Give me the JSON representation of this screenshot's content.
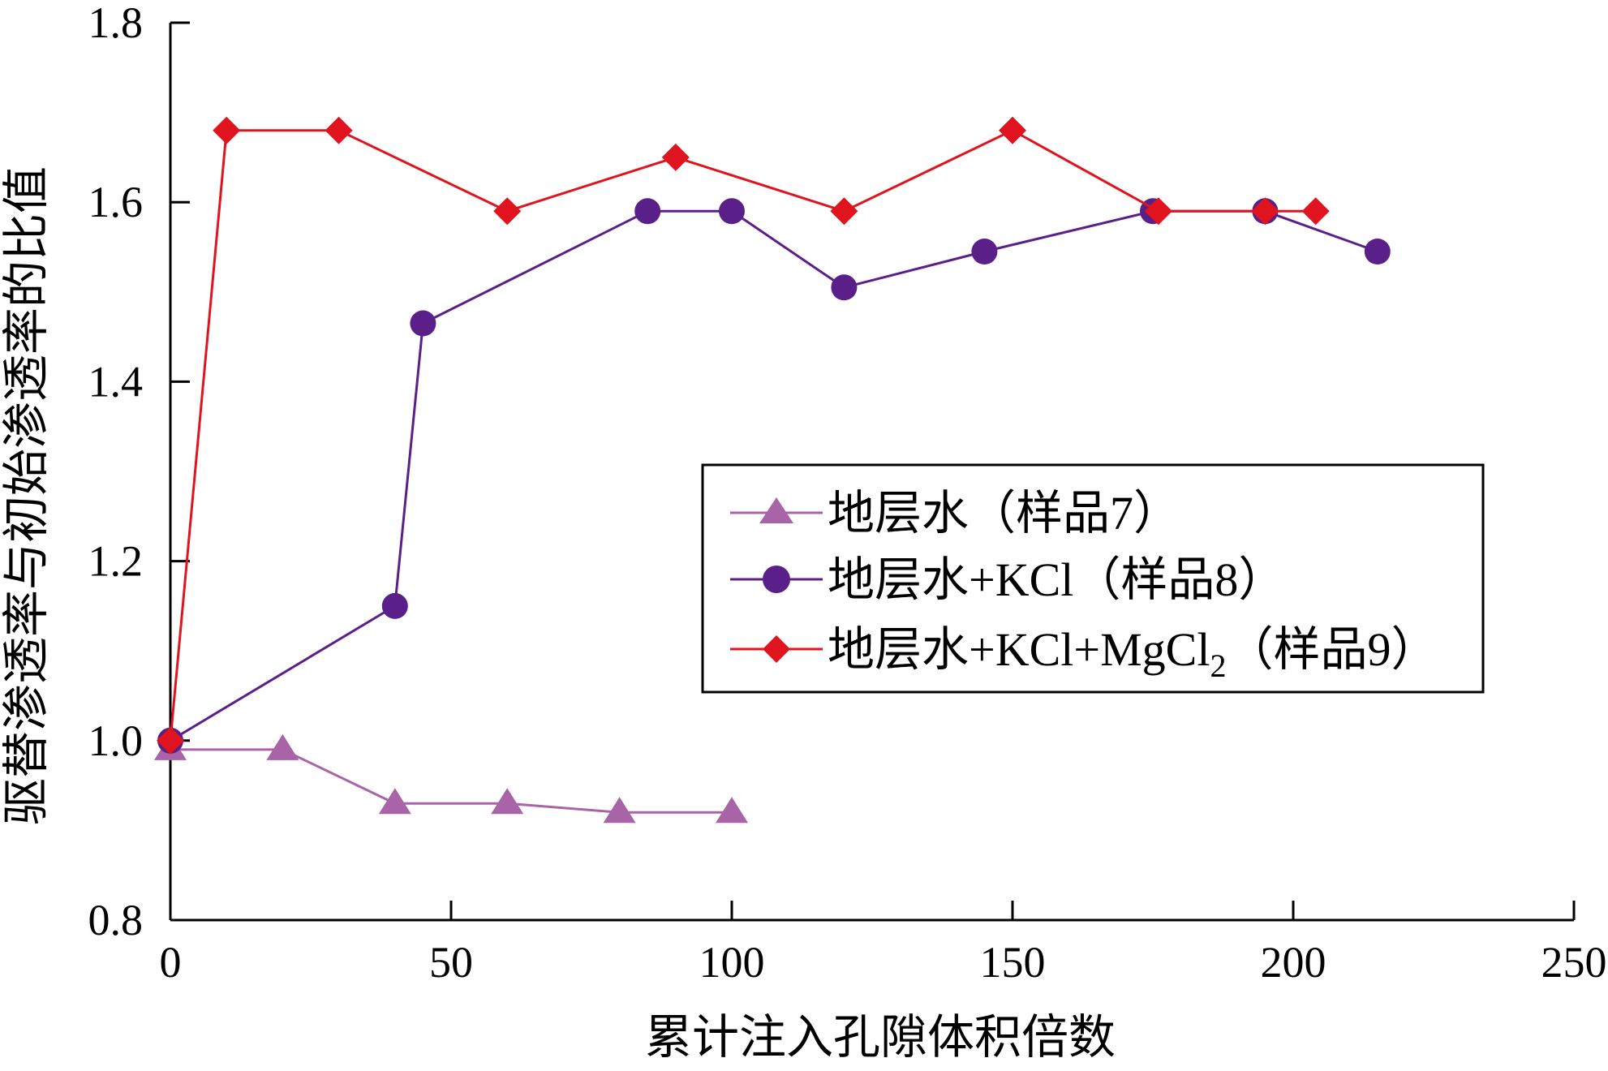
{
  "chart_data": {
    "type": "line",
    "xlabel": "累计注入孔隙体积倍数",
    "ylabel": "驱替渗透率与初始渗透率的比值",
    "xlim": [
      0,
      250
    ],
    "ylim": [
      0.8,
      1.8
    ],
    "xticks": [
      "0",
      "50",
      "100",
      "150",
      "200",
      "250"
    ],
    "yticks": [
      "0.8",
      "1.0",
      "1.2",
      "1.4",
      "1.6",
      "1.8"
    ],
    "grid": false,
    "legend_position": "center-right",
    "series": [
      {
        "name": "地层水（样品7）",
        "legend_text": "地层水（样品7）",
        "color": "#a864a6",
        "marker": "triangle",
        "x": [
          0,
          20,
          40,
          60,
          80,
          100
        ],
        "y": [
          0.99,
          0.99,
          0.93,
          0.93,
          0.92,
          0.92
        ]
      },
      {
        "name": "地层水+KCl（样品8）",
        "legend_text": "地层水+KCl（样品8）",
        "color": "#5b1f8a",
        "marker": "circle",
        "x": [
          0,
          40,
          45,
          85,
          100,
          120,
          145,
          175,
          195,
          215
        ],
        "y": [
          1.0,
          1.15,
          1.465,
          1.59,
          1.59,
          1.505,
          1.545,
          1.59,
          1.59,
          1.545
        ]
      },
      {
        "name": "地层水+KCl+MgCl2（样品9）",
        "legend_parts": [
          "地层水+KCl+MgCl",
          "2",
          "（样品9）"
        ],
        "color": "#e0141e",
        "marker": "diamond",
        "x": [
          0,
          10,
          30,
          60,
          90,
          120,
          150,
          176,
          195,
          204
        ],
        "y": [
          1.0,
          1.68,
          1.68,
          1.59,
          1.65,
          1.59,
          1.68,
          1.59,
          1.59,
          1.59
        ]
      }
    ]
  }
}
